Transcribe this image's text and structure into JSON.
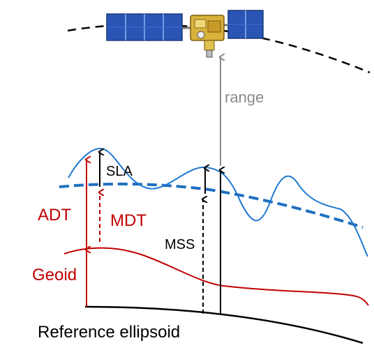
{
  "labels": {
    "range": "range",
    "sla": "SLA",
    "adt": "ADT",
    "mdt": "MDT",
    "mss": "MSS",
    "geoid": "Geoid",
    "reference_ellipsoid": "Reference ellipsoid"
  },
  "colors": {
    "red": "#c00000",
    "blue_sea": "#1f78d1",
    "blue_mean": "#1f6fc0",
    "gray_range": "#8a8a8a",
    "black": "#000000"
  },
  "icons": {
    "satellite": "satellite-icon"
  }
}
